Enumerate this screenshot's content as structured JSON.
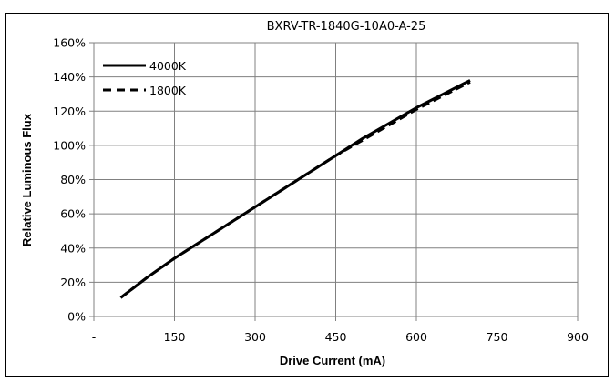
{
  "chart_data": {
    "type": "line",
    "title": "BXRV-TR-1840G-10A0-A-25",
    "xlabel": "Drive Current (mA)",
    "ylabel": "Relative Luminous Flux",
    "xlim": [
      0,
      900
    ],
    "ylim": [
      0,
      160
    ],
    "x_ticks": [
      {
        "value": 0,
        "label": "-"
      },
      {
        "value": 150,
        "label": "150"
      },
      {
        "value": 300,
        "label": "300"
      },
      {
        "value": 450,
        "label": "450"
      },
      {
        "value": 600,
        "label": "600"
      },
      {
        "value": 750,
        "label": "750"
      },
      {
        "value": 900,
        "label": "900"
      }
    ],
    "y_ticks": [
      {
        "value": 0,
        "label": "0%"
      },
      {
        "value": 20,
        "label": "20%"
      },
      {
        "value": 40,
        "label": "40%"
      },
      {
        "value": 60,
        "label": "60%"
      },
      {
        "value": 80,
        "label": "80%"
      },
      {
        "value": 100,
        "label": "100%"
      },
      {
        "value": 120,
        "label": "120%"
      },
      {
        "value": 140,
        "label": "140%"
      },
      {
        "value": 160,
        "label": "160%"
      }
    ],
    "grid": true,
    "legend_position": "top-left",
    "series": [
      {
        "name": "4000K",
        "style": "solid",
        "color": "#000000",
        "x": [
          50,
          75,
          100,
          150,
          200,
          250,
          300,
          350,
          400,
          450,
          500,
          550,
          600,
          650,
          700
        ],
        "y": [
          11,
          17,
          23,
          34,
          44,
          54,
          64,
          74,
          84,
          94,
          104,
          113,
          122,
          130,
          138
        ]
      },
      {
        "name": "1800K",
        "style": "dashed",
        "color": "#000000",
        "x": [
          50,
          75,
          100,
          150,
          200,
          250,
          300,
          350,
          400,
          450,
          500,
          550,
          600,
          650,
          700
        ],
        "y": [
          11,
          17,
          23,
          34,
          44,
          54,
          64,
          74,
          84,
          94,
          103,
          112,
          121,
          129,
          137
        ]
      }
    ]
  }
}
